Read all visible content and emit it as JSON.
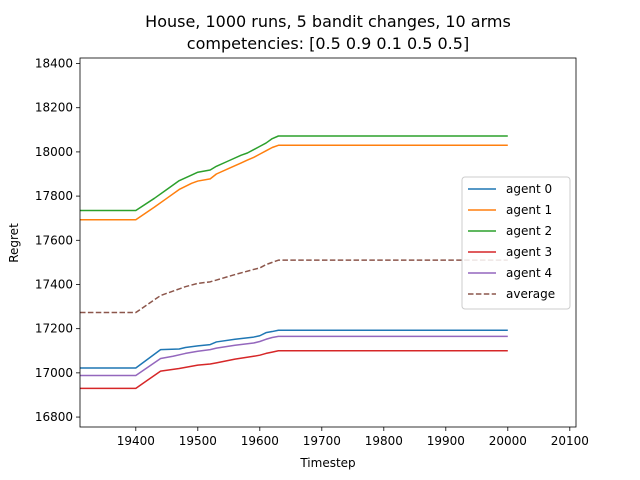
{
  "chart_data": {
    "type": "line",
    "title_line1": "House, 1000 runs, 5 bandit changes, 10 arms",
    "title_line2": "competencies: [0.5 0.9 0.1 0.5 0.5]",
    "xlabel": "Timestep",
    "ylabel": "Regret",
    "xlim": [
      19310,
      20110
    ],
    "ylim": [
      16755,
      18425
    ],
    "xticks": [
      19400,
      19500,
      19600,
      19700,
      19800,
      19900,
      20000,
      20100
    ],
    "yticks": [
      16800,
      17000,
      17200,
      17400,
      17600,
      17800,
      18000,
      18200,
      18400
    ],
    "legend_position": "center-right",
    "grid": false,
    "series": [
      {
        "name": "agent 0",
        "color": "#1f77b4",
        "dash": false,
        "x": [
          19310,
          19400,
          19440,
          19470,
          19480,
          19500,
          19520,
          19530,
          19560,
          19590,
          19600,
          19610,
          19620,
          19630,
          20000
        ],
        "y": [
          17022,
          17022,
          17105,
          17108,
          17115,
          17122,
          17128,
          17140,
          17152,
          17162,
          17168,
          17182,
          17187,
          17193,
          17193
        ]
      },
      {
        "name": "agent 1",
        "color": "#ff7f0e",
        "dash": false,
        "x": [
          19310,
          19400,
          19430,
          19450,
          19470,
          19490,
          19500,
          19520,
          19530,
          19550,
          19570,
          19580,
          19590,
          19600,
          19610,
          19620,
          19630,
          20000
        ],
        "y": [
          17693,
          17693,
          17750,
          17790,
          17830,
          17858,
          17868,
          17878,
          17900,
          17925,
          17950,
          17963,
          17975,
          17990,
          18005,
          18020,
          18030,
          18030
        ]
      },
      {
        "name": "agent 2",
        "color": "#2ca02c",
        "dash": false,
        "x": [
          19310,
          19400,
          19430,
          19450,
          19470,
          19490,
          19500,
          19520,
          19530,
          19550,
          19570,
          19580,
          19590,
          19600,
          19610,
          19620,
          19630,
          20000
        ],
        "y": [
          17735,
          17735,
          17790,
          17830,
          17870,
          17895,
          17908,
          17918,
          17935,
          17960,
          17985,
          17995,
          18010,
          18025,
          18040,
          18060,
          18072,
          18072
        ]
      },
      {
        "name": "agent 3",
        "color": "#d62728",
        "dash": false,
        "x": [
          19310,
          19400,
          19440,
          19470,
          19480,
          19500,
          19520,
          19530,
          19560,
          19590,
          19600,
          19610,
          19620,
          19630,
          20000
        ],
        "y": [
          16930,
          16930,
          17008,
          17020,
          17025,
          17035,
          17040,
          17045,
          17062,
          17075,
          17080,
          17088,
          17094,
          17100,
          17100
        ]
      },
      {
        "name": "agent 4",
        "color": "#9467bd",
        "dash": false,
        "x": [
          19310,
          19400,
          19440,
          19460,
          19480,
          19500,
          19520,
          19530,
          19560,
          19590,
          19600,
          19610,
          19620,
          19630,
          20000
        ],
        "y": [
          16988,
          16988,
          17065,
          17075,
          17088,
          17098,
          17105,
          17112,
          17125,
          17135,
          17142,
          17152,
          17160,
          17165,
          17165
        ]
      },
      {
        "name": "average",
        "color": "#8c564b",
        "dash": true,
        "x": [
          19310,
          19400,
          19440,
          19470,
          19480,
          19500,
          19520,
          19530,
          19560,
          19590,
          19600,
          19610,
          19620,
          19630,
          20000
        ],
        "y": [
          17273,
          17273,
          17350,
          17380,
          17390,
          17405,
          17412,
          17420,
          17445,
          17468,
          17475,
          17490,
          17500,
          17510,
          17510
        ]
      }
    ]
  }
}
